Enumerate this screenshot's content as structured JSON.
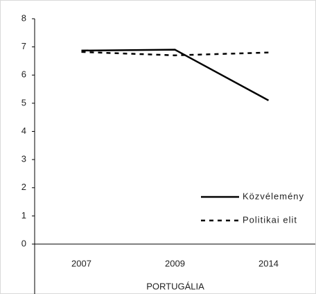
{
  "chart_data": {
    "type": "line",
    "x_label": "PORTUGÁLIA",
    "categories": [
      "2007",
      "2009",
      "2014"
    ],
    "series": [
      {
        "name": "Közvélemény",
        "color": "#000000",
        "style": "solid",
        "values": [
          6.87,
          6.9,
          5.1
        ]
      },
      {
        "name": "Politikai elit",
        "color": "#000000",
        "style": "dashed",
        "values": [
          6.82,
          6.7,
          6.8
        ]
      }
    ],
    "ylim": [
      0,
      8
    ],
    "yticks": [
      0,
      1,
      2,
      3,
      4,
      5,
      6,
      7,
      8
    ],
    "legend": "right"
  }
}
